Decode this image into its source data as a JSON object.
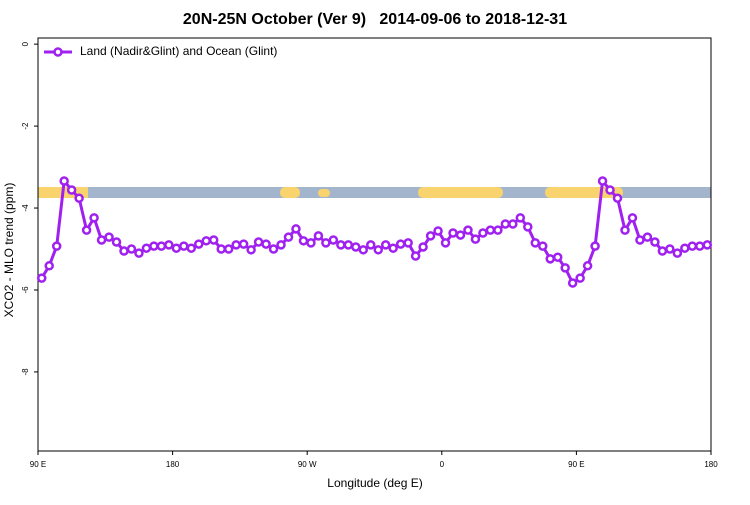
{
  "chart_data": {
    "type": "line",
    "title": "20N-25N October (Ver 9)   2014-09-06 to 2018-12-31",
    "xlabel": "Longitude (deg E)",
    "ylabel": "XCO2 - MLO trend (ppm)",
    "xlim": [
      90,
      540
    ],
    "ylim": [
      -9.93,
      0.15
    ],
    "xticks": [
      {
        "value": 90,
        "label": "90 E"
      },
      180,
      {
        "value": 270,
        "label": "90 W"
      },
      {
        "value": 360,
        "label": "0"
      },
      {
        "value": 450,
        "label": "90 E"
      },
      {
        "value": 540,
        "label": "180"
      }
    ],
    "yticks": [
      0,
      -2,
      -4,
      -6,
      -8
    ],
    "legend": "top-left",
    "x": [
      92.5,
      97.5,
      102.5,
      107.5,
      112.5,
      117.5,
      122.5,
      127.5,
      132.5,
      137.5,
      142.5,
      147.5,
      152.5,
      157.5,
      162.5,
      167.5,
      172.5,
      177.5,
      182.5,
      187.5,
      192.5,
      197.5,
      202.5,
      207.5,
      212.5,
      217.5,
      222.5,
      227.5,
      232.5,
      237.5,
      242.5,
      247.5,
      252.5,
      257.5,
      262.5,
      267.5,
      272.5,
      277.5,
      282.5,
      287.5,
      292.5,
      297.5,
      302.5,
      307.5,
      312.5,
      317.5,
      322.5,
      327.5,
      332.5,
      337.5,
      342.5,
      347.5,
      352.5,
      357.5,
      362.5,
      367.5,
      372.5,
      377.5,
      382.5,
      387.5,
      392.5,
      397.5,
      402.5,
      407.5,
      412.5,
      417.5,
      422.5,
      427.5,
      432.5,
      437.5,
      442.5,
      447.5,
      452.5,
      457.5,
      462.5,
      467.5,
      472.5,
      477.5,
      482.5,
      487.5,
      492.5,
      497.5,
      502.5,
      507.5,
      512.5,
      517.5,
      522.5,
      527.5,
      532.5,
      537.5
    ],
    "series": [
      {
        "name": "Land (Nadir&Glint) and Ocean (Glint)",
        "color": "#a020f0",
        "values": [
          -5.71,
          -5.41,
          -4.93,
          -3.34,
          -3.56,
          -3.76,
          -4.54,
          -4.24,
          -4.78,
          -4.71,
          -4.83,
          -5.05,
          -5.0,
          -5.1,
          -4.98,
          -4.93,
          -4.93,
          -4.9,
          -4.98,
          -4.93,
          -4.98,
          -4.88,
          -4.8,
          -4.78,
          -5.0,
          -5.0,
          -4.9,
          -4.88,
          -5.02,
          -4.83,
          -4.88,
          -5.0,
          -4.9,
          -4.71,
          -4.51,
          -4.8,
          -4.85,
          -4.68,
          -4.85,
          -4.78,
          -4.9,
          -4.9,
          -4.95,
          -5.02,
          -4.9,
          -5.02,
          -4.9,
          -4.98,
          -4.88,
          -4.85,
          -5.17,
          -4.95,
          -4.68,
          -4.56,
          -4.85,
          -4.61,
          -4.66,
          -4.54,
          -4.76,
          -4.61,
          -4.54,
          -4.54,
          -4.39,
          -4.39,
          -4.24,
          -4.46,
          -4.85,
          -4.93,
          -5.24,
          -5.2,
          -5.46,
          -5.83,
          -5.71,
          -5.41,
          -4.93,
          -3.34,
          -3.56,
          -3.76,
          -4.54,
          -4.24,
          -4.78,
          -4.71,
          -4.83,
          -5.05,
          -5.0,
          -5.1,
          -4.98,
          -4.93,
          -4.93,
          -4.9
        ]
      }
    ]
  }
}
